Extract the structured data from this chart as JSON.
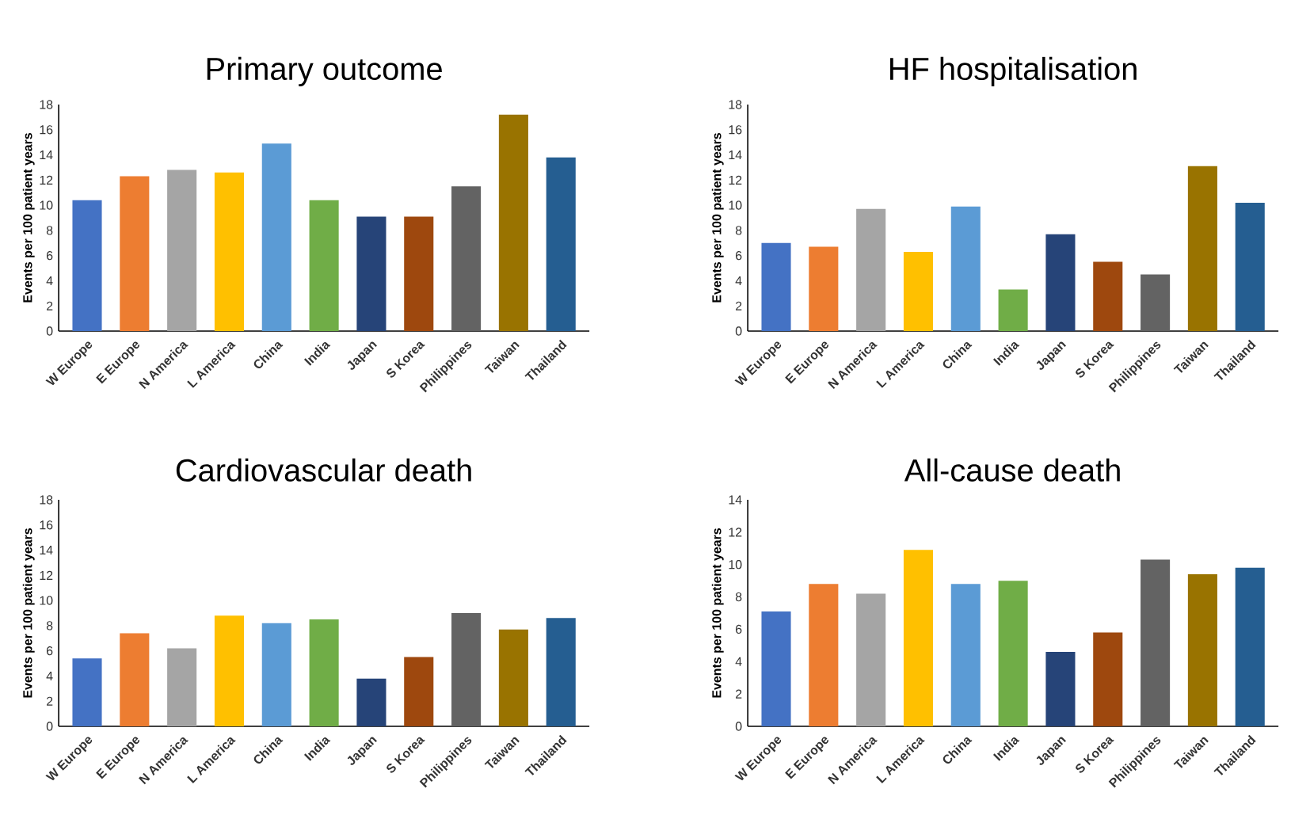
{
  "chart_data": [
    {
      "type": "bar",
      "title": "Primary outcome",
      "ylabel": "Events per 100 patient years",
      "categories": [
        "W Europe",
        "E Europe",
        "N America",
        "L America",
        "China",
        "India",
        "Japan",
        "S Korea",
        "Philippines",
        "Taiwan",
        "Thailand"
      ],
      "values": [
        10.4,
        12.3,
        12.8,
        12.6,
        14.9,
        10.4,
        9.1,
        9.1,
        11.5,
        17.2,
        13.8
      ],
      "colors": [
        "#4472c4",
        "#ed7d31",
        "#a5a5a5",
        "#ffc000",
        "#5b9bd5",
        "#70ad47",
        "#264478",
        "#9e480e",
        "#636363",
        "#997300",
        "#255e91"
      ],
      "ylim": [
        0,
        18
      ],
      "yticks": [
        0,
        2,
        4,
        6,
        8,
        10,
        12,
        14,
        16,
        18
      ]
    },
    {
      "type": "bar",
      "title": "HF hospitalisation",
      "ylabel": "Events per 100 patient years",
      "categories": [
        "W Europe",
        "E Europe",
        "N America",
        "L America",
        "China",
        "India",
        "Japan",
        "S Korea",
        "Philippines",
        "Taiwan",
        "Thailand"
      ],
      "values": [
        7.0,
        6.7,
        9.7,
        6.3,
        9.9,
        3.3,
        7.7,
        5.5,
        4.5,
        13.1,
        10.2
      ],
      "colors": [
        "#4472c4",
        "#ed7d31",
        "#a5a5a5",
        "#ffc000",
        "#5b9bd5",
        "#70ad47",
        "#264478",
        "#9e480e",
        "#636363",
        "#997300",
        "#255e91"
      ],
      "ylim": [
        0,
        18
      ],
      "yticks": [
        0,
        2,
        4,
        6,
        8,
        10,
        12,
        14,
        16,
        18
      ]
    },
    {
      "type": "bar",
      "title": "Cardiovascular death",
      "ylabel": "Events per 100 patient years",
      "categories": [
        "W Europe",
        "E Europe",
        "N America",
        "L America",
        "China",
        "India",
        "Japan",
        "S Korea",
        "Philippines",
        "Taiwan",
        "Thailand"
      ],
      "values": [
        5.4,
        7.4,
        6.2,
        8.8,
        8.2,
        8.5,
        3.8,
        5.5,
        9.0,
        7.7,
        8.6
      ],
      "colors": [
        "#4472c4",
        "#ed7d31",
        "#a5a5a5",
        "#ffc000",
        "#5b9bd5",
        "#70ad47",
        "#264478",
        "#9e480e",
        "#636363",
        "#997300",
        "#255e91"
      ],
      "ylim": [
        0,
        18
      ],
      "yticks": [
        0,
        2,
        4,
        6,
        8,
        10,
        12,
        14,
        16,
        18
      ]
    },
    {
      "type": "bar",
      "title": "All-cause death",
      "ylabel": "Events per 100 patient years",
      "categories": [
        "W Europe",
        "E Europe",
        "N America",
        "L America",
        "China",
        "India",
        "Japan",
        "S Korea",
        "Philippines",
        "Taiwan",
        "Thailand"
      ],
      "values": [
        7.1,
        8.8,
        8.2,
        10.9,
        8.8,
        9.0,
        4.6,
        5.8,
        10.3,
        9.4,
        9.8
      ],
      "colors": [
        "#4472c4",
        "#ed7d31",
        "#a5a5a5",
        "#ffc000",
        "#5b9bd5",
        "#70ad47",
        "#264478",
        "#9e480e",
        "#636363",
        "#997300",
        "#255e91"
      ],
      "ylim": [
        0,
        14
      ],
      "yticks": [
        0,
        2,
        4,
        6,
        8,
        10,
        12,
        14
      ]
    }
  ]
}
